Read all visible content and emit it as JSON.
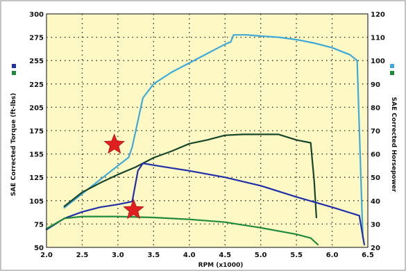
{
  "chart_data": {
    "type": "line",
    "title": "",
    "xlabel": "RPM (x1000)",
    "ylabel_left": "SAE Corrected Torque (ft-lbs)",
    "ylabel_right": "SAE Corrected Horsepower",
    "xlim": [
      2.0,
      6.5
    ],
    "ylim_left": [
      50,
      300
    ],
    "ylim_right": [
      20,
      120
    ],
    "x_ticks": [
      "2.0",
      "2.5",
      "3.0",
      "3.5",
      "4.0",
      "4.5",
      "5.0",
      "5.5",
      "6.0",
      "6.5"
    ],
    "y_ticks_left": [
      "50",
      "75",
      "105",
      "125",
      "155",
      "175",
      "205",
      "225",
      "255",
      "275",
      "300"
    ],
    "y_ticks_right": [
      "20",
      "30",
      "40",
      "50",
      "60",
      "70",
      "80",
      "90",
      "100",
      "110",
      "120"
    ],
    "grid": true,
    "background_color": "#fdf8c4",
    "legend": [
      {
        "axis": "left",
        "colors": [
          "#1f2fa8",
          "#1f8a3a"
        ]
      },
      {
        "axis": "right",
        "colors": [
          "#3fa9d8",
          "#1f8a3a"
        ]
      }
    ],
    "series": [
      {
        "axis": "right",
        "color": "#3fa9d8",
        "x": [
          2.25,
          2.5,
          2.75,
          3.0,
          3.15,
          3.2,
          3.35,
          3.5,
          3.75,
          4.0,
          4.25,
          4.5,
          4.58,
          4.62,
          4.8,
          5.0,
          5.25,
          5.5,
          5.75,
          6.0,
          6.25,
          6.35,
          6.43
        ],
        "y": [
          37,
          43,
          49,
          55,
          58.5,
          63,
          84,
          90,
          95,
          99,
          103,
          107,
          108,
          111,
          111,
          110.5,
          110,
          109,
          107.5,
          105.5,
          102.5,
          100,
          24
        ]
      },
      {
        "axis": "left",
        "color": "#16452a",
        "x": [
          2.25,
          2.5,
          2.75,
          3.0,
          3.25,
          3.5,
          3.75,
          4.0,
          4.25,
          4.5,
          4.75,
          5.0,
          5.25,
          5.5,
          5.7,
          5.75,
          5.78
        ],
        "y": [
          94,
          109,
          119,
          128,
          136,
          146,
          153,
          161,
          165,
          170,
          171,
          171,
          171,
          165,
          162,
          120,
          82
        ]
      },
      {
        "axis": "left",
        "color": "#1f2fa8",
        "x": [
          2.0,
          2.25,
          2.5,
          2.75,
          3.0,
          3.2,
          3.28,
          3.35,
          3.5,
          3.75,
          4.0,
          4.5,
          5.0,
          5.5,
          6.0,
          6.38,
          6.45
        ],
        "y": [
          69,
          81,
          88,
          93,
          96,
          99,
          132,
          140,
          138,
          135,
          132,
          125,
          116,
          104,
          93,
          84,
          53
        ]
      },
      {
        "axis": "left",
        "color": "#1f8a3a",
        "x": [
          2.0,
          2.25,
          2.5,
          3.0,
          3.5,
          4.0,
          4.5,
          5.0,
          5.5,
          5.7,
          5.8
        ],
        "y": [
          70,
          81,
          83,
          83,
          82,
          80,
          77,
          71,
          64,
          60,
          53
        ]
      }
    ],
    "annotations": [
      {
        "type": "star",
        "color": "#e02020",
        "x": 2.95,
        "y_left": 160
      },
      {
        "type": "star",
        "color": "#e02020",
        "x": 3.22,
        "y_left": 90
      }
    ]
  }
}
